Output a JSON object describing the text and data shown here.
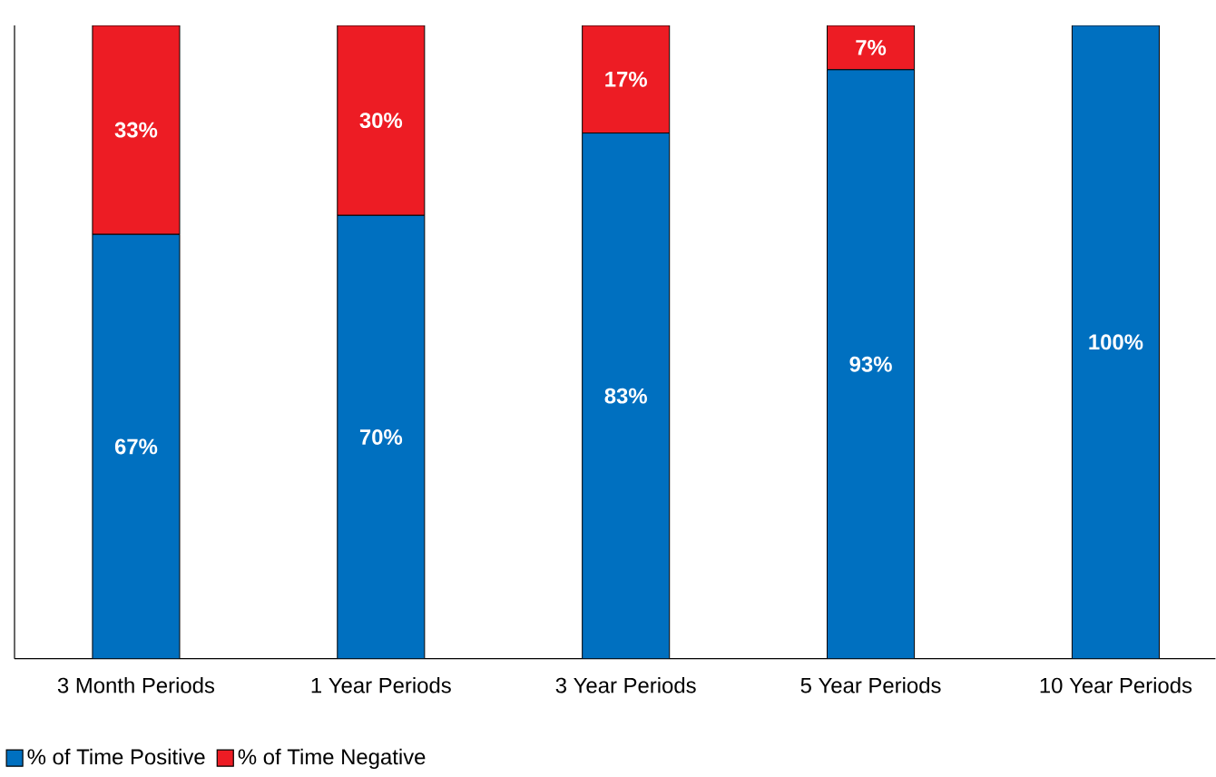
{
  "chart_data": {
    "type": "bar",
    "stacked": true,
    "categories": [
      "3 Month Periods",
      "1 Year Periods",
      "3 Year Periods",
      "5 Year Periods",
      "10 Year Periods"
    ],
    "series": [
      {
        "name": "% of Time Positive",
        "color": "#0070c0",
        "values": [
          67,
          70,
          83,
          93,
          100
        ],
        "value_labels": [
          "67%",
          "70%",
          "83%",
          "93%",
          "100%"
        ]
      },
      {
        "name": "% of Time Negative",
        "color": "#ed1c24",
        "values": [
          33,
          30,
          17,
          7,
          0
        ],
        "value_labels": [
          "33%",
          "30%",
          "17%",
          "7%",
          null
        ]
      }
    ],
    "legend": "bottom left"
  }
}
